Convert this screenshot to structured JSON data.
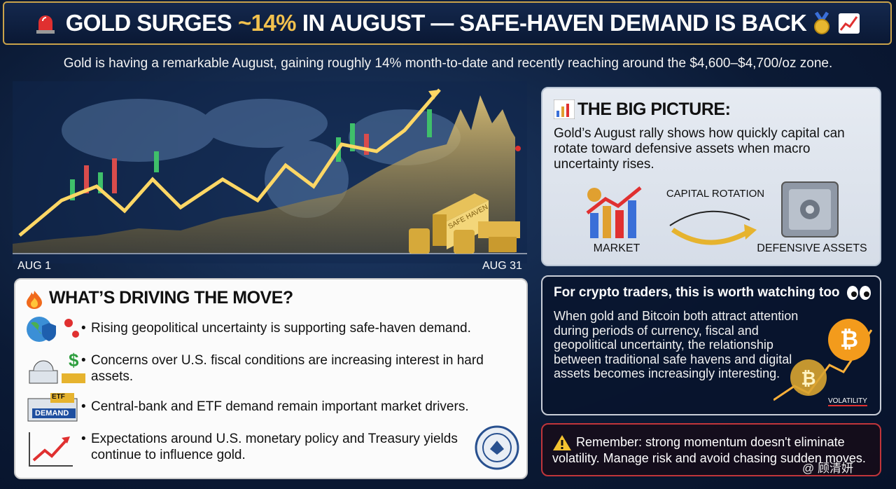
{
  "header": {
    "title_start": "GOLD SURGES",
    "title_highlight": "~14%",
    "title_end": "IN AUGUST — SAFE-HAVEN DEMAND IS BACK",
    "subtitle": "Gold is having a remarkable August, gaining roughly 14% month-to-date and recently reaching around the $4,600–$4,700/oz zone."
  },
  "hero": {
    "start_label": "AUG 1",
    "end_label": "AUG 31",
    "bar_label": "SAFE HAVEN"
  },
  "big_picture": {
    "title": "THE BIG PICTURE:",
    "body": "Gold’s August rally shows how quickly capital can rotate toward defensive assets when macro uncertainty rises.",
    "left_label": "MARKET",
    "arrow_label": "CAPITAL ROTATION",
    "right_label": "DEFENSIVE ASSETS"
  },
  "drivers": {
    "title": "WHAT’S DRIVING THE MOVE?",
    "items": [
      "Rising geopolitical uncertainty is supporting safe-haven demand.",
      "Concerns over U.S. fiscal conditions are increasing interest in hard assets.",
      "Central-bank and ETF demand remain important market drivers.",
      "Expectations around U.S. monetary policy and Treasury yields continue to influence gold."
    ],
    "etf_badge": "ETF",
    "demand_badge": "DEMAND"
  },
  "crypto": {
    "title": "For crypto traders, this is worth watching too",
    "body": "When gold and Bitcoin both attract attention during periods of currency, fiscal and geopolitical uncertainty, the relationship between traditional safe havens and digital assets becomes increasingly interesting.",
    "tag": "VOLATILITY"
  },
  "warning": {
    "text": "Remember: strong momentum doesn't eliminate volatility. Manage risk and avoid chasing sudden moves."
  },
  "watermark": "@ 顾清妍"
}
